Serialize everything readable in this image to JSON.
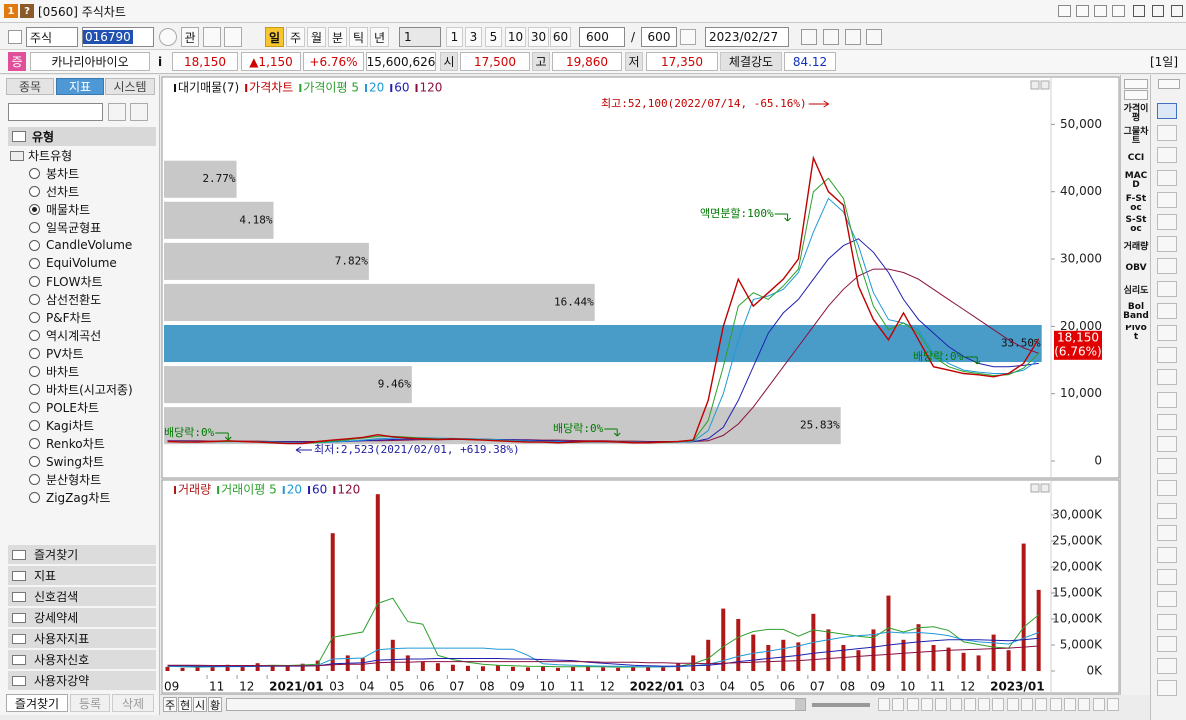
{
  "window": {
    "badges": [
      "1",
      "?"
    ],
    "title": "[0560] 주식차트"
  },
  "toolbar": {
    "market": "주식",
    "code": "016790",
    "button": "관",
    "periods": [
      "일",
      "주",
      "월",
      "분",
      "틱",
      "년"
    ],
    "selected_period": 0,
    "unit": "1",
    "intervals": [
      "1",
      "3",
      "5",
      "10",
      "30",
      "60"
    ],
    "count": "600",
    "separator": "/",
    "total": "600",
    "date": "2023/02/27"
  },
  "quote": {
    "badge": "증",
    "name": "카나리아바이오",
    "info": "i",
    "price": "18,150",
    "change": "▲1,150",
    "rate": "+6.76%",
    "volume": "15,600,626",
    "open_label": "시",
    "open": "17,500",
    "high_label": "고",
    "high": "19,860",
    "low_label": "저",
    "low": "17,350",
    "strength_label": "체결강도",
    "strength": "84.12",
    "period": "[1일]"
  },
  "sidebar": {
    "tabs": [
      "종목",
      "지표",
      "시스템"
    ],
    "selected_tab": 1,
    "section": "유형",
    "group": "차트유형",
    "items": [
      "봉차트",
      "선차트",
      "매물차트",
      "일목균형표",
      "CandleVolume",
      "EquiVolume",
      "FLOW차트",
      "삼선전환도",
      "P&F차트",
      "역시계곡선",
      "PV차트",
      "바차트",
      "바차트(시고저종)",
      "POLE차트",
      "Kagi차트",
      "Renko차트",
      "Swing차트",
      "분산형차트",
      "ZigZag차트"
    ],
    "selected_item": 2,
    "folders": [
      "즐겨찾기",
      "지표",
      "신호검색",
      "강세약세",
      "사용자지표",
      "사용자신호",
      "사용자강약"
    ],
    "bottom_tabs": [
      "즐겨찾기",
      "등록",
      "삭제"
    ]
  },
  "indicators": [
    "가격이평",
    "그물차트",
    "CCI",
    "MACD",
    "F-Stoc",
    "S-Stoc",
    "거래량",
    "OBV",
    "심리도",
    "Bol Band",
    "Pivot"
  ],
  "bottom_bar": {
    "buttons": [
      "주",
      "현",
      "시",
      "황"
    ]
  },
  "chart_data": [
    {
      "type": "line",
      "profile": {
        "name": "대기매물(7)",
        "bins": [
          2200,
          8300,
          14400,
          20500,
          26600,
          32700,
          38800,
          44900
        ],
        "values": [
          25.83,
          9.46,
          33.5,
          16.44,
          7.82,
          4.18,
          2.77
        ],
        "value_labels": [
          "25.83%",
          "9.46%",
          "33.50%",
          "16.44%",
          "7.82%",
          "4.18%",
          "2.77%"
        ],
        "colors": [
          "#c8c8c8",
          "#c8c8c8",
          "#4a9cc8",
          "#c8c8c8",
          "#c8c8c8",
          "#c8c8c8",
          "#c8c8c8"
        ]
      },
      "series": [
        {
          "name": "가격차트",
          "color": "#c00000",
          "values": [
            2900,
            2800,
            2800,
            2900,
            3000,
            2900,
            2800,
            2700,
            2600,
            2600,
            2900,
            3100,
            3300,
            3500,
            3900,
            3600,
            3400,
            3300,
            3200,
            3300,
            3200,
            3100,
            3000,
            2900,
            2800,
            2800,
            2700,
            2800,
            2900,
            2900,
            2800,
            2700,
            2700,
            2800,
            2900,
            3100,
            9000,
            20000,
            27000,
            23000,
            25000,
            27000,
            30000,
            45000,
            40000,
            38000,
            26000,
            21000,
            18000,
            22000,
            18000,
            14000,
            13500,
            13000,
            12800,
            12500,
            13000,
            14500,
            18150
          ]
        },
        {
          "name": "가격이평 5",
          "color": "#2ca02c",
          "values": [
            2900,
            2850,
            2800,
            2850,
            2900,
            2900,
            2850,
            2750,
            2650,
            2600,
            2750,
            2950,
            3150,
            3400,
            3650,
            3650,
            3550,
            3400,
            3300,
            3250,
            3250,
            3150,
            3050,
            2950,
            2850,
            2800,
            2750,
            2750,
            2850,
            2900,
            2850,
            2750,
            2700,
            2750,
            2850,
            3000,
            6000,
            14000,
            23000,
            25000,
            24000,
            26000,
            28500,
            40000,
            42000,
            39000,
            30000,
            23000,
            19500,
            20500,
            19000,
            15500,
            14000,
            13300,
            13000,
            12700,
            12800,
            13800,
            16000
          ]
        },
        {
          "name": "20",
          "color": "#1f9ad6",
          "values": [
            2900,
            2900,
            2850,
            2850,
            2850,
            2850,
            2850,
            2800,
            2750,
            2700,
            2700,
            2800,
            2950,
            3100,
            3300,
            3400,
            3450,
            3450,
            3400,
            3350,
            3300,
            3250,
            3150,
            3050,
            2950,
            2900,
            2850,
            2800,
            2800,
            2800,
            2800,
            2800,
            2750,
            2750,
            2800,
            2900,
            4500,
            10000,
            18000,
            24000,
            24500,
            25500,
            28000,
            34000,
            39000,
            37000,
            32000,
            25000,
            21000,
            20500,
            19500,
            16000,
            14500,
            13500,
            13200,
            13000,
            13000,
            13500,
            15000
          ]
        },
        {
          "name": "60",
          "color": "#2020b0",
          "values": [
            2950,
            2950,
            2900,
            2900,
            2900,
            2900,
            2900,
            2850,
            2850,
            2800,
            2800,
            2850,
            2900,
            3000,
            3100,
            3200,
            3250,
            3300,
            3300,
            3300,
            3300,
            3250,
            3200,
            3150,
            3100,
            3000,
            2950,
            2900,
            2850,
            2850,
            2850,
            2800,
            2800,
            2800,
            2800,
            2850,
            3300,
            5000,
            9000,
            14000,
            19000,
            22000,
            24000,
            27000,
            30000,
            32000,
            33000,
            31000,
            28000,
            24000,
            21000,
            19000,
            17000,
            15500,
            14500,
            14000,
            14000,
            14200,
            14500
          ]
        },
        {
          "name": "120",
          "color": "#8a1040",
          "values": [
            3000,
            3000,
            3000,
            2950,
            2950,
            2950,
            2950,
            2900,
            2900,
            2900,
            2900,
            2900,
            2950,
            3000,
            3000,
            3050,
            3100,
            3150,
            3150,
            3200,
            3200,
            3200,
            3200,
            3150,
            3150,
            3100,
            3100,
            3050,
            3000,
            3000,
            2950,
            2950,
            2900,
            2900,
            2900,
            2900,
            3000,
            3800,
            5500,
            8000,
            11000,
            14000,
            17000,
            20000,
            23000,
            25500,
            27500,
            28500,
            28500,
            28000,
            27000,
            25500,
            24000,
            22500,
            21000,
            19500,
            18000,
            16800,
            16000
          ]
        }
      ],
      "ylim": [
        -2080,
        56590
      ],
      "yticks": [
        0,
        {
          "value": 10000,
          "label": "10,000"
        },
        {
          "value": 20000,
          "label": "20,000"
        },
        {
          "value": 30000,
          "label": "30,000"
        },
        {
          "value": 40000,
          "label": "40,000"
        },
        {
          "value": 50000,
          "label": "50,000"
        }
      ],
      "annotations": [
        {
          "text": "최고:52,100(2022/07/14, -65.16%)",
          "color": "#c00000"
        },
        {
          "text": "최저:2,523(2021/02/01, +619.38%)",
          "color": "#2020a0"
        },
        {
          "text": "배당락:0%",
          "color": "#007a00"
        },
        {
          "text": "배당락:0%",
          "color": "#007a00"
        },
        {
          "text": "배당락:0%",
          "color": "#007a00"
        },
        {
          "text": "액면분할:100%",
          "color": "#007a00"
        }
      ],
      "last_flag": {
        "price": "18,150",
        "change": "(6.76%)",
        "color": "#e00000"
      }
    },
    {
      "type": "bar",
      "categories": [
        "09",
        null,
        null,
        "11",
        null,
        "12",
        null,
        "2021/01",
        null,
        null,
        null,
        "03",
        null,
        "04",
        null,
        "05",
        null,
        "06",
        null,
        "07",
        null,
        "08",
        null,
        "09",
        null,
        "10",
        null,
        "11",
        null,
        "12",
        null,
        "2022/01",
        null,
        null,
        null,
        "03",
        null,
        "04",
        null,
        "05",
        null,
        "06",
        null,
        "07",
        null,
        "08",
        null,
        "09",
        null,
        "10",
        null,
        "11",
        null,
        "12",
        null,
        "2023/01",
        null,
        null,
        null
      ],
      "series": [
        {
          "name": "거래량",
          "color": "#b01818",
          "values": [
            800000,
            600000,
            700000,
            900000,
            1200000,
            800000,
            1500000,
            1000000,
            900000,
            1400000,
            2000000,
            26500000,
            3000000,
            2500000,
            34000000,
            6000000,
            3000000,
            1800000,
            1500000,
            1200000,
            1000000,
            900000,
            1100000,
            800000,
            700000,
            900000,
            600000,
            800000,
            1000000,
            700000,
            600000,
            800000,
            700000,
            900000,
            1500000,
            3000000,
            6000000,
            12000000,
            10000000,
            7000000,
            5000000,
            6000000,
            5500000,
            11000000,
            8000000,
            5000000,
            4000000,
            8000000,
            14500000,
            6000000,
            9000000,
            5000000,
            4500000,
            3500000,
            3000000,
            7000000,
            4000000,
            24500000,
            15600000
          ]
        },
        {
          "name": "거래이평 5",
          "type": "line",
          "color": "#2ca02c",
          "values": [
            900000,
            800000,
            750000,
            800000,
            900000,
            900000,
            1000000,
            1100000,
            1050000,
            1150000,
            1300000,
            6500000,
            7000000,
            7500000,
            13000000,
            14000000,
            9500000,
            9000000,
            3000000,
            2200000,
            1700000,
            1300000,
            1100000,
            1000000,
            900000,
            880000,
            800000,
            800000,
            800000,
            800000,
            740000,
            760000,
            760000,
            780000,
            920000,
            1400000,
            2400000,
            4700000,
            6500000,
            7600000,
            8000000,
            8000000,
            6700000,
            7900000,
            7500000,
            7100000,
            6700000,
            6400000,
            8300000,
            7500000,
            8300000,
            8500000,
            7800000,
            5600000,
            5100000,
            4600000,
            4400000,
            8400000,
            10800000
          ]
        },
        {
          "name": "20",
          "type": "line",
          "color": "#1f9ad6",
          "values": [
            900000,
            850000,
            800000,
            800000,
            850000,
            850000,
            900000,
            950000,
            950000,
            1000000,
            1100000,
            2300000,
            2400000,
            2500000,
            4100000,
            4300000,
            4400000,
            4400000,
            4400000,
            4400000,
            4400000,
            4400000,
            4200000,
            4200000,
            3000000,
            1400000,
            1200000,
            1100000,
            1000000,
            950000,
            900000,
            850000,
            800000,
            800000,
            850000,
            1000000,
            1300000,
            2000000,
            2800000,
            3400000,
            3800000,
            4300000,
            4800000,
            5500000,
            6000000,
            6500000,
            6800000,
            7000000,
            7500000,
            7300000,
            7400000,
            7200000,
            6800000,
            6000000,
            5600000,
            5400000,
            5200000,
            6300000,
            7400000
          ]
        },
        {
          "name": "60",
          "type": "line",
          "color": "#2020b0",
          "values": [
            1000000,
            1000000,
            950000,
            950000,
            950000,
            950000,
            950000,
            950000,
            950000,
            950000,
            1000000,
            1400000,
            1500000,
            1600000,
            2100000,
            2200000,
            2300000,
            2300000,
            2400000,
            2400000,
            2400000,
            2400000,
            2400000,
            2300000,
            2300000,
            2200000,
            2100000,
            2000000,
            1700000,
            1500000,
            1300000,
            1100000,
            1000000,
            950000,
            950000,
            1000000,
            1100000,
            1400000,
            1800000,
            2100000,
            2400000,
            2700000,
            3000000,
            3400000,
            3700000,
            4000000,
            4300000,
            4600000,
            5000000,
            5300000,
            5600000,
            5800000,
            6000000,
            6000000,
            6000000,
            5900000,
            5800000,
            6000000,
            6300000
          ]
        },
        {
          "name": "120",
          "type": "line",
          "color": "#8a1040",
          "values": [
            1100000,
            1100000,
            1100000,
            1050000,
            1050000,
            1050000,
            1050000,
            1000000,
            1000000,
            1000000,
            1000000,
            1200000,
            1300000,
            1300000,
            1600000,
            1700000,
            1700000,
            1800000,
            1800000,
            1800000,
            1800000,
            1800000,
            1800000,
            1800000,
            1800000,
            1800000,
            1800000,
            1800000,
            1800000,
            1700000,
            1700000,
            1700000,
            1600000,
            1600000,
            1500000,
            1500000,
            1400000,
            1500000,
            1600000,
            1700000,
            1800000,
            1900000,
            2000000,
            2200000,
            2400000,
            2600000,
            2800000,
            3000000,
            3200000,
            3400000,
            3600000,
            3800000,
            4000000,
            4100000,
            4200000,
            4300000,
            4400000,
            4600000,
            4800000
          ]
        }
      ],
      "ylim": [
        -770000,
        36150000
      ],
      "yticks": [
        {
          "value": 0,
          "label": "0K"
        },
        {
          "value": 5000000,
          "label": "5,000K"
        },
        {
          "value": 10000000,
          "label": "10,000K"
        },
        {
          "value": 15000000,
          "label": "15,000K"
        },
        {
          "value": 20000000,
          "label": "20,000K"
        },
        {
          "value": 25000000,
          "label": "25,000K"
        },
        {
          "value": 30000000,
          "label": "30,000K"
        }
      ]
    }
  ]
}
